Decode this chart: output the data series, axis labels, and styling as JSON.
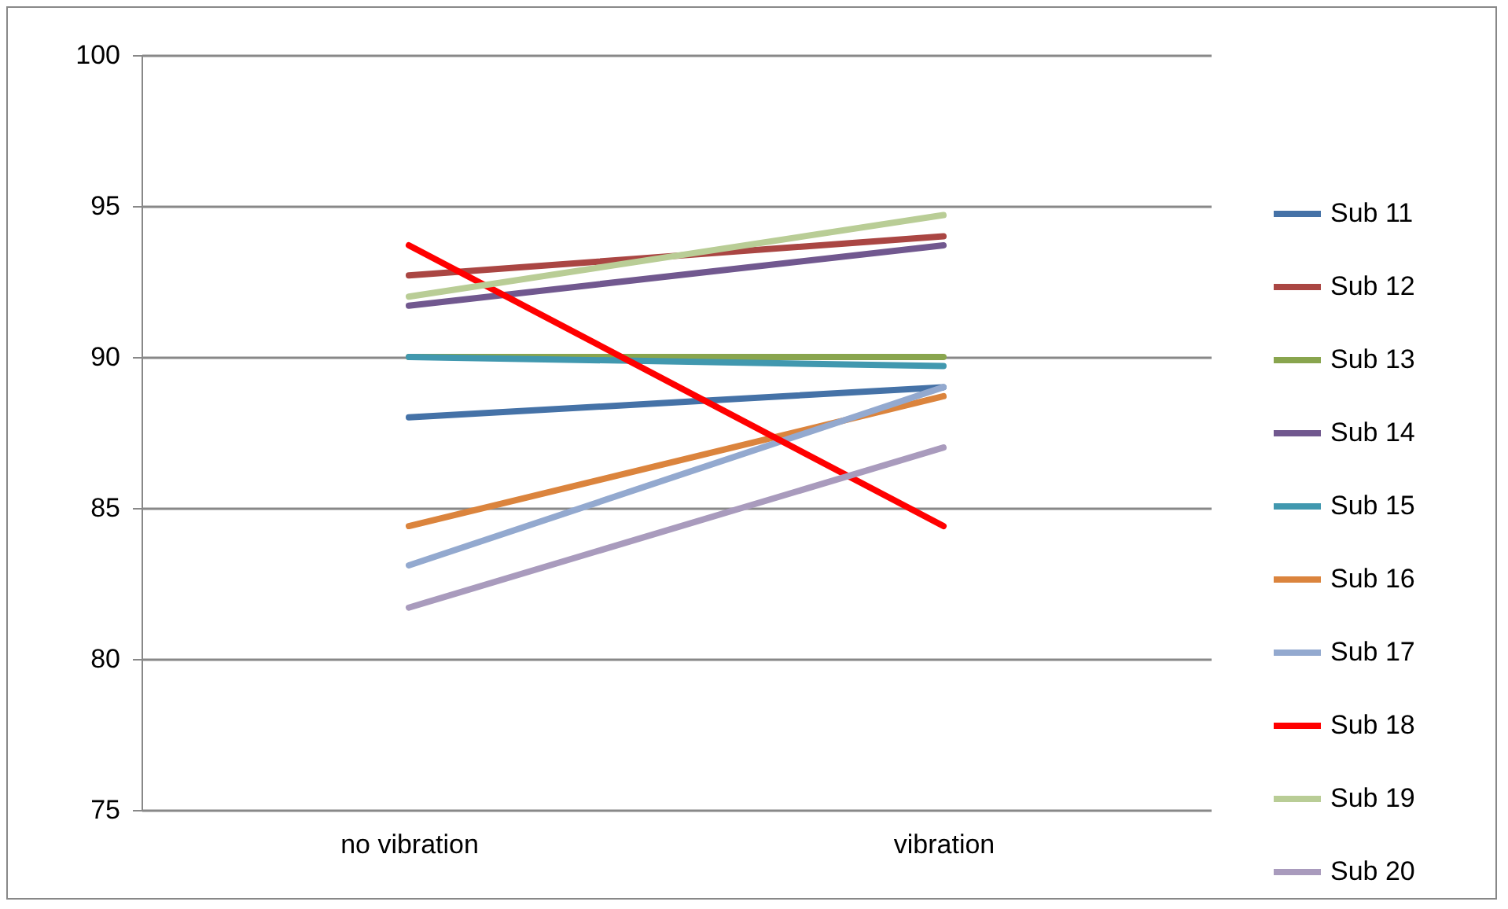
{
  "chart_data": {
    "type": "line",
    "categories": [
      "no vibration",
      "vibration"
    ],
    "series": [
      {
        "name": "Sub 11",
        "color": "#4572a7",
        "values": [
          88.0,
          89.0
        ]
      },
      {
        "name": "Sub 12",
        "color": "#aa4643",
        "values": [
          92.7,
          94.0
        ]
      },
      {
        "name": "Sub 13",
        "color": "#89a54e",
        "values": [
          90.0,
          90.0
        ]
      },
      {
        "name": "Sub 14",
        "color": "#71588f",
        "values": [
          91.7,
          93.7
        ]
      },
      {
        "name": "Sub 15",
        "color": "#4198af",
        "values": [
          90.0,
          89.7
        ]
      },
      {
        "name": "Sub 16",
        "color": "#db843d",
        "values": [
          84.4,
          88.7
        ]
      },
      {
        "name": "Sub 17",
        "color": "#93a9cf",
        "values": [
          83.1,
          89.0
        ]
      },
      {
        "name": "Sub 18",
        "color": "#ff0000",
        "values": [
          93.7,
          84.4
        ]
      },
      {
        "name": "Sub 19",
        "color": "#b9cd96",
        "values": [
          92.0,
          94.7
        ]
      },
      {
        "name": "Sub 20",
        "color": "#a99bbd",
        "values": [
          81.7,
          87.0
        ]
      }
    ],
    "ylim": [
      75,
      100
    ],
    "yticks": [
      75,
      80,
      85,
      90,
      95,
      100
    ],
    "grid": "y",
    "legend": "right",
    "marker": "none",
    "line_style": "solid"
  }
}
